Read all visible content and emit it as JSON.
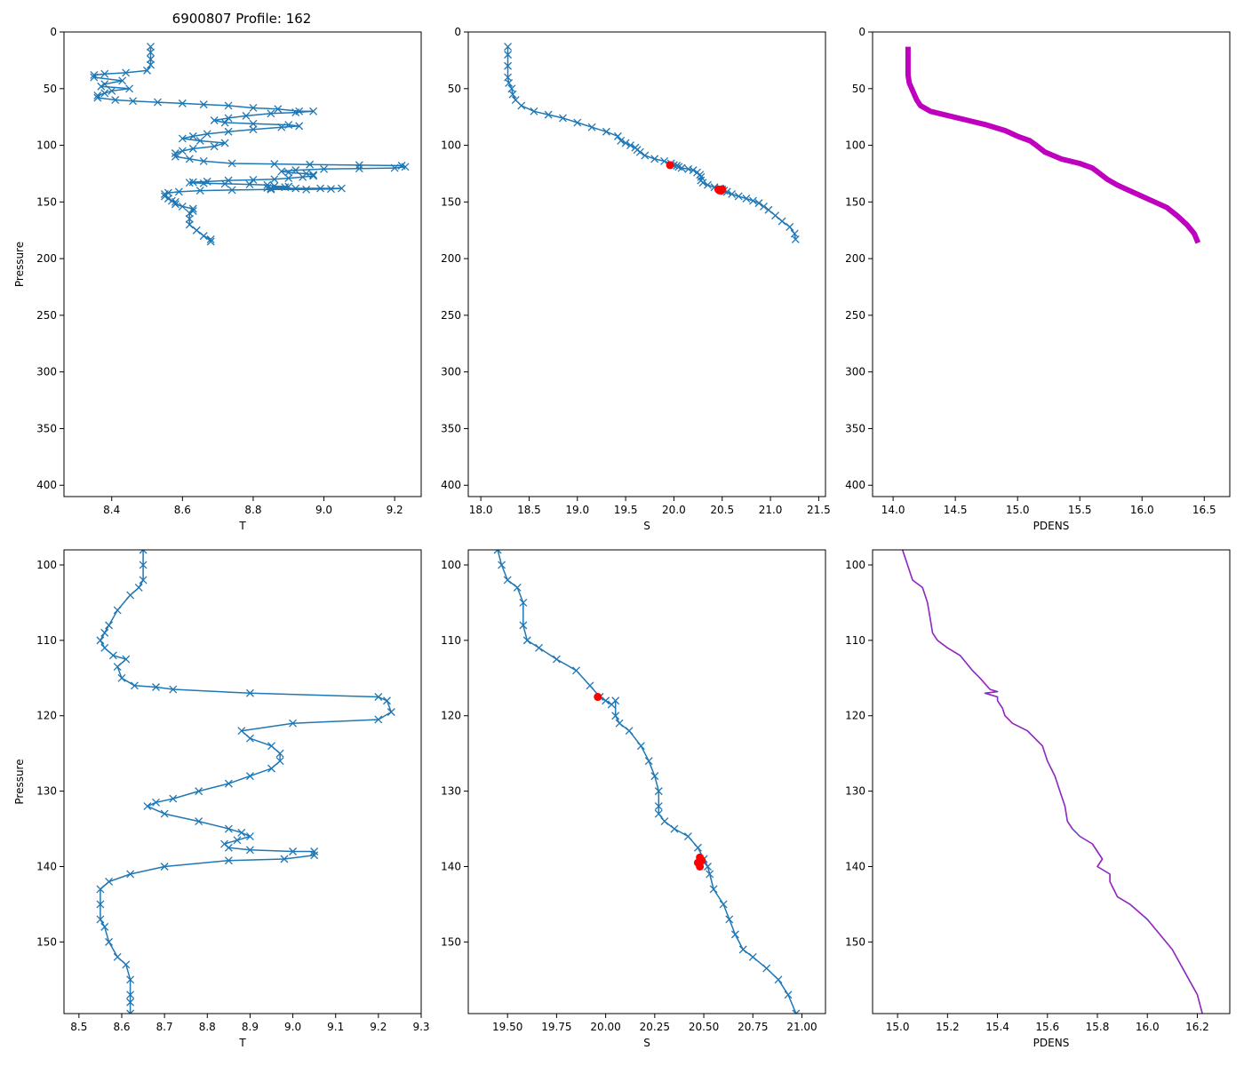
{
  "figure": {
    "title": "6900807 Profile: 162",
    "colors": {
      "series": "#1f77b4",
      "flag": "#ff0000",
      "density": "#bf00bf",
      "axis": "#000000"
    }
  },
  "chart_data": [
    {
      "id": "top-t",
      "type": "line",
      "title": "6900807 Profile: 162",
      "xlabel": "T",
      "ylabel": "Pressure",
      "xlim": [
        8.265,
        9.275
      ],
      "ylim": [
        410,
        0
      ],
      "xticks": [
        8.4,
        8.6,
        8.8,
        9.0,
        9.2
      ],
      "xtick_labels": [
        "8.4",
        "8.6",
        "8.8",
        "9.0",
        "9.2"
      ],
      "yticks": [
        0,
        50,
        100,
        150,
        200,
        250,
        300,
        350,
        400
      ],
      "ytick_labels": [
        "0",
        "50",
        "100",
        "150",
        "200",
        "250",
        "300",
        "350",
        "400"
      ],
      "marker": "x",
      "series": [
        {
          "name": "T",
          "x": [
            8.51,
            8.51,
            8.51,
            8.51,
            8.5,
            8.44,
            8.38,
            8.35,
            8.35,
            8.43,
            8.38,
            8.37,
            8.45,
            8.4,
            8.38,
            8.36,
            8.36,
            8.41,
            8.46,
            8.53,
            8.6,
            8.66,
            8.73,
            8.8,
            8.87,
            8.93,
            8.97,
            8.92,
            8.85,
            8.78,
            8.73,
            8.69,
            8.72,
            8.8,
            8.9,
            8.93,
            8.88,
            8.8,
            8.73,
            8.67,
            8.63,
            8.6,
            8.65,
            8.72,
            8.69,
            8.63,
            8.6,
            8.58,
            8.58,
            8.62,
            8.66,
            8.74,
            8.86,
            8.96,
            9.1,
            9.22,
            9.23,
            9.2,
            9.1,
            9.0,
            8.92,
            8.88,
            8.9,
            8.95,
            8.97,
            8.97,
            8.94,
            8.9,
            8.86,
            8.8,
            8.73,
            8.67,
            8.63,
            8.62,
            8.66,
            8.72,
            8.79,
            8.84,
            8.86,
            8.9,
            8.89,
            8.84,
            8.85,
            8.92,
            8.99,
            9.05,
            9.02,
            8.95,
            8.85,
            8.74,
            8.65,
            8.59,
            8.56,
            8.55,
            8.55,
            8.56,
            8.57,
            8.58,
            8.58,
            8.6,
            8.63,
            8.63,
            8.62,
            8.62,
            8.62,
            8.64,
            8.66,
            8.68,
            8.68
          ],
          "y": [
            13,
            18,
            24,
            29,
            34,
            36,
            37,
            38,
            40,
            43,
            46,
            48,
            50,
            52,
            54,
            56,
            58,
            60,
            61,
            62,
            63,
            64,
            65,
            67,
            68,
            70,
            70,
            71,
            72,
            74,
            76,
            78,
            80,
            81,
            82,
            83,
            84,
            86,
            88,
            90,
            92,
            94,
            96,
            98,
            101,
            103,
            105,
            107,
            110,
            112,
            114,
            116,
            116.5,
            117,
            117.5,
            118,
            119,
            120,
            120.5,
            121,
            122,
            123,
            124,
            125,
            126,
            127,
            128,
            129,
            130,
            130.5,
            131,
            132,
            132.5,
            133,
            133.5,
            134,
            134.5,
            135,
            136,
            136.5,
            137,
            137.5,
            138,
            138,
            138,
            138,
            138.5,
            139,
            139,
            139.5,
            140,
            141,
            142,
            143,
            145,
            147,
            149,
            150,
            152,
            154,
            156,
            158,
            160,
            165,
            170,
            175,
            180,
            183,
            185
          ]
        }
      ]
    },
    {
      "id": "top-s",
      "type": "line",
      "title": "",
      "xlabel": "S",
      "ylabel": "",
      "xlim": [
        17.87,
        21.57
      ],
      "ylim": [
        410,
        0
      ],
      "xticks": [
        18.0,
        18.5,
        19.0,
        19.5,
        20.0,
        20.5,
        21.0,
        21.5
      ],
      "xtick_labels": [
        "18.0",
        "18.5",
        "19.0",
        "19.5",
        "20.0",
        "20.5",
        "21.0",
        "21.5"
      ],
      "yticks": [
        0,
        50,
        100,
        150,
        200,
        250,
        300,
        350,
        400
      ],
      "ytick_labels": [
        "0",
        "50",
        "100",
        "150",
        "200",
        "250",
        "300",
        "350",
        "400"
      ],
      "marker": "x",
      "series": [
        {
          "name": "S",
          "x": [
            18.28,
            18.28,
            18.28,
            18.28,
            18.29,
            18.32,
            18.33,
            18.36,
            18.42,
            18.55,
            18.7,
            18.85,
            19.0,
            19.15,
            19.3,
            19.42,
            19.45,
            19.5,
            19.55,
            19.6,
            19.62,
            19.65,
            19.7,
            19.8,
            19.9,
            19.97,
            20.0,
            20.03,
            20.05,
            20.08,
            20.15,
            20.2,
            20.24,
            20.27,
            20.28,
            20.28,
            20.3,
            20.35,
            20.42,
            20.48,
            20.5,
            20.52,
            20.55,
            20.6,
            20.67,
            20.75,
            20.82,
            20.88,
            20.93,
            20.98,
            21.05,
            21.12,
            21.2,
            21.25,
            21.26
          ],
          "y": [
            13,
            20,
            30,
            40,
            45,
            50,
            55,
            60,
            65,
            70,
            73,
            76,
            80,
            84,
            88,
            92,
            96,
            98,
            100,
            102,
            104,
            106,
            109,
            112,
            114,
            116,
            117.5,
            118,
            119,
            120,
            121,
            122,
            124,
            126,
            128,
            131,
            133,
            135,
            137,
            138,
            139,
            140,
            141,
            143,
            145,
            147,
            149,
            151,
            154,
            157,
            162,
            167,
            172,
            178,
            183
          ]
        }
      ],
      "flags": {
        "x": [
          19.96,
          20.46,
          20.48,
          20.49,
          20.5,
          20.47
        ],
        "y": [
          117.5,
          139,
          139.5,
          140,
          138.8,
          139.8
        ]
      }
    },
    {
      "id": "top-pdens",
      "type": "line",
      "title": "",
      "xlabel": "PDENS",
      "ylabel": "",
      "xlim": [
        13.835,
        16.705
      ],
      "ylim": [
        410,
        0
      ],
      "xticks": [
        14.0,
        14.5,
        15.0,
        15.5,
        16.0,
        16.5
      ],
      "xtick_labels": [
        "14.0",
        "14.5",
        "15.0",
        "15.5",
        "16.0",
        "16.5"
      ],
      "yticks": [
        0,
        50,
        100,
        150,
        200,
        250,
        300,
        350,
        400
      ],
      "ytick_labels": [
        "0",
        "50",
        "100",
        "150",
        "200",
        "250",
        "300",
        "350",
        "400"
      ],
      "marker": "none",
      "series": [
        {
          "name": "PDENS",
          "x": [
            14.12,
            14.12,
            14.12,
            14.12,
            14.13,
            14.15,
            14.17,
            14.19,
            14.22,
            14.3,
            14.45,
            14.6,
            14.75,
            14.9,
            15.0,
            15.1,
            15.15,
            15.22,
            15.35,
            15.5,
            15.6,
            15.65,
            15.72,
            15.8,
            15.9,
            16.0,
            16.1,
            16.2,
            16.28,
            16.36,
            16.42,
            16.45
          ],
          "y": [
            13,
            20,
            30,
            38,
            45,
            50,
            55,
            60,
            65,
            70,
            74,
            78,
            82,
            87,
            92,
            96,
            100,
            106,
            112,
            116,
            120,
            124,
            130,
            135,
            140,
            145,
            150,
            155,
            162,
            170,
            178,
            186
          ]
        }
      ]
    },
    {
      "id": "bottom-t",
      "type": "line",
      "title": "",
      "xlabel": "T",
      "ylabel": "Pressure",
      "xlim": [
        8.465,
        9.3
      ],
      "ylim": [
        159.5,
        98
      ],
      "xticks": [
        8.5,
        8.6,
        8.7,
        8.8,
        8.9,
        9.0,
        9.1,
        9.2,
        9.3
      ],
      "xtick_labels": [
        "8.5",
        "8.6",
        "8.7",
        "8.8",
        "8.9",
        "9.0",
        "9.1",
        "9.2",
        "9.3"
      ],
      "yticks": [
        100,
        110,
        120,
        130,
        140,
        150
      ],
      "ytick_labels": [
        "100",
        "110",
        "120",
        "130",
        "140",
        "150"
      ],
      "marker": "x",
      "series": [
        {
          "name": "T",
          "x": [
            8.65,
            8.65,
            8.65,
            8.64,
            8.62,
            8.59,
            8.57,
            8.56,
            8.55,
            8.56,
            8.58,
            8.61,
            8.59,
            8.6,
            8.63,
            8.68,
            8.72,
            8.9,
            9.2,
            9.22,
            9.23,
            9.2,
            9.0,
            8.88,
            8.9,
            8.95,
            8.97,
            8.97,
            8.95,
            8.9,
            8.85,
            8.78,
            8.72,
            8.68,
            8.66,
            8.7,
            8.78,
            8.85,
            8.88,
            8.9,
            8.87,
            8.84,
            8.85,
            8.9,
            9.0,
            9.05,
            9.05,
            8.98,
            8.85,
            8.7,
            8.62,
            8.57,
            8.55,
            8.55,
            8.55,
            8.56,
            8.57,
            8.59,
            8.61,
            8.62,
            8.62,
            8.62,
            8.62
          ],
          "y": [
            98,
            100,
            102,
            103,
            104,
            106,
            108,
            109,
            110,
            111,
            112,
            112.5,
            113.5,
            115,
            116,
            116.2,
            116.5,
            117,
            117.5,
            118,
            119.5,
            120.5,
            121,
            122,
            123,
            124,
            125,
            126,
            127,
            128,
            129,
            130,
            131,
            131.5,
            132,
            133,
            134,
            135,
            135.5,
            136,
            136.5,
            137,
            137.5,
            137.8,
            138,
            138,
            138.5,
            139,
            139.2,
            140,
            141,
            142,
            143,
            145,
            147,
            148,
            150,
            152,
            153,
            155,
            157,
            158,
            159.5
          ]
        }
      ]
    },
    {
      "id": "bottom-s",
      "type": "line",
      "title": "",
      "xlabel": "S",
      "ylabel": "",
      "xlim": [
        19.3,
        21.12
      ],
      "ylim": [
        159.5,
        98
      ],
      "xticks": [
        19.5,
        19.75,
        20.0,
        20.25,
        20.5,
        20.75,
        21.0
      ],
      "xtick_labels": [
        "19.50",
        "19.75",
        "20.00",
        "20.25",
        "20.50",
        "20.75",
        "21.00"
      ],
      "yticks": [
        100,
        110,
        120,
        130,
        140,
        150
      ],
      "ytick_labels": [
        "100",
        "110",
        "120",
        "130",
        "140",
        "150"
      ],
      "marker": "x",
      "series": [
        {
          "name": "S",
          "x": [
            19.45,
            19.47,
            19.5,
            19.55,
            19.58,
            19.58,
            19.6,
            19.66,
            19.75,
            19.85,
            19.92,
            19.97,
            20.0,
            20.03,
            20.05,
            20.05,
            20.07,
            20.12,
            20.18,
            20.22,
            20.25,
            20.27,
            20.27,
            20.27,
            20.3,
            20.35,
            20.42,
            20.47,
            20.5,
            20.52,
            20.53,
            20.55,
            20.6,
            20.63,
            20.66,
            20.7,
            20.75,
            20.82,
            20.88,
            20.93,
            20.97
          ],
          "y": [
            98,
            100,
            102,
            103,
            105,
            108,
            110,
            111,
            112.5,
            114,
            116,
            117.5,
            118,
            118.5,
            118,
            120,
            121,
            122,
            124,
            126,
            128,
            130,
            132,
            133,
            134,
            135,
            136,
            137.5,
            139,
            140,
            141,
            143,
            145,
            147,
            149,
            151,
            152,
            153.5,
            155,
            157,
            159.5
          ]
        }
      ],
      "flags": {
        "x": [
          19.96,
          20.48,
          20.47,
          20.49,
          20.48
        ],
        "y": [
          117.5,
          138.8,
          139.5,
          139.2,
          140
        ]
      }
    },
    {
      "id": "bottom-pdens",
      "type": "line",
      "title": "",
      "xlabel": "PDENS",
      "ylabel": "",
      "xlim": [
        14.9,
        16.33
      ],
      "ylim": [
        159.5,
        98
      ],
      "xticks": [
        15.0,
        15.2,
        15.4,
        15.6,
        15.8,
        16.0,
        16.2
      ],
      "xtick_labels": [
        "15.0",
        "15.2",
        "15.4",
        "15.6",
        "15.8",
        "16.0",
        "16.2"
      ],
      "yticks": [
        100,
        110,
        120,
        130,
        140,
        150
      ],
      "ytick_labels": [
        "100",
        "110",
        "120",
        "130",
        "140",
        "150"
      ],
      "marker": "none",
      "series": [
        {
          "name": "PDENS",
          "x": [
            15.02,
            15.04,
            15.06,
            15.1,
            15.12,
            15.13,
            15.14,
            15.16,
            15.2,
            15.25,
            15.3,
            15.33,
            15.37,
            15.4,
            15.35,
            15.4,
            15.4,
            15.42,
            15.43,
            15.46,
            15.52,
            15.58,
            15.6,
            15.63,
            15.65,
            15.67,
            15.68,
            15.7,
            15.73,
            15.78,
            15.82,
            15.8,
            15.85,
            15.85,
            15.88,
            15.93,
            16.0,
            16.05,
            16.1,
            16.15,
            16.2,
            16.22
          ],
          "y": [
            98,
            100,
            102,
            103,
            105,
            107,
            109,
            110,
            111,
            112,
            114,
            115,
            116.5,
            116.8,
            117,
            117.5,
            118,
            119,
            120,
            121,
            122,
            124,
            126,
            128,
            130,
            132,
            134,
            135,
            136,
            137,
            139,
            140,
            141,
            142,
            144,
            145,
            147,
            149,
            151,
            154,
            157,
            159.5
          ]
        }
      ]
    }
  ]
}
